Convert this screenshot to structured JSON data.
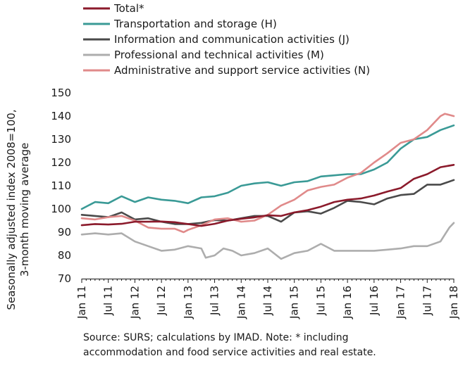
{
  "chart_data": {
    "type": "line",
    "ylabel_lines": [
      "Seasonally adjusted index 2008=100,",
      "3-month moving average"
    ],
    "xlabel": "",
    "ylim": [
      70,
      150
    ],
    "yticks": [
      70,
      80,
      90,
      100,
      110,
      120,
      130,
      140,
      150
    ],
    "x_ticks": [
      "Jan 11",
      "Jul 11",
      "Jan 12",
      "Jul 12",
      "Jan 13",
      "Jul 13",
      "Jan 14",
      "Jul 14",
      "Jan 15",
      "Jul 15",
      "Jan 16",
      "Jul 16",
      "Jan 17",
      "Jul 17",
      "Jan 18"
    ],
    "grid": false,
    "legend_position": "top-left",
    "source_lines": [
      "Source:  SURS; calculations by IMAD. Note: * including",
      "accommodation and food service activities and real estate."
    ],
    "series": [
      {
        "name": "Total*",
        "color": "#8b1a2b",
        "points": [
          [
            0,
            93
          ],
          [
            3,
            93.5
          ],
          [
            6,
            93.3
          ],
          [
            9,
            93.6
          ],
          [
            12,
            94.5
          ],
          [
            15,
            94.5
          ],
          [
            18,
            94.6
          ],
          [
            21,
            94.3
          ],
          [
            24,
            93.5
          ],
          [
            27,
            92.7
          ],
          [
            30,
            93.6
          ],
          [
            33,
            95
          ],
          [
            36,
            95.8
          ],
          [
            39,
            96.4
          ],
          [
            42,
            97.3
          ],
          [
            45,
            97
          ],
          [
            48,
            98.5
          ],
          [
            51,
            99.5
          ],
          [
            54,
            101
          ],
          [
            57,
            103
          ],
          [
            60,
            104
          ],
          [
            63,
            104.5
          ],
          [
            66,
            105.8
          ],
          [
            69,
            107.5
          ],
          [
            72,
            109
          ],
          [
            75,
            113
          ],
          [
            78,
            115
          ],
          [
            81,
            118
          ],
          [
            84,
            119
          ]
        ]
      },
      {
        "name": "Transportation and storage (H)",
        "color": "#3a9a96",
        "points": [
          [
            0,
            100
          ],
          [
            3,
            103
          ],
          [
            6,
            102.5
          ],
          [
            9,
            105.5
          ],
          [
            12,
            103
          ],
          [
            15,
            105
          ],
          [
            18,
            104
          ],
          [
            21,
            103.5
          ],
          [
            24,
            102.5
          ],
          [
            27,
            105
          ],
          [
            30,
            105.5
          ],
          [
            33,
            107
          ],
          [
            36,
            110
          ],
          [
            39,
            111
          ],
          [
            42,
            111.5
          ],
          [
            45,
            110
          ],
          [
            48,
            111.5
          ],
          [
            51,
            112
          ],
          [
            54,
            114
          ],
          [
            57,
            114.5
          ],
          [
            60,
            115
          ],
          [
            63,
            115
          ],
          [
            66,
            117
          ],
          [
            69,
            120
          ],
          [
            72,
            126
          ],
          [
            75,
            130
          ],
          [
            78,
            131
          ],
          [
            81,
            134
          ],
          [
            84,
            136
          ]
        ]
      },
      {
        "name": "Information and communication activities (J)",
        "color": "#4a4a4a",
        "points": [
          [
            0,
            97.5
          ],
          [
            3,
            97
          ],
          [
            6,
            96.5
          ],
          [
            9,
            98.5
          ],
          [
            12,
            95.5
          ],
          [
            15,
            96
          ],
          [
            18,
            94.5
          ],
          [
            21,
            93.5
          ],
          [
            24,
            93.5
          ],
          [
            27,
            94
          ],
          [
            30,
            95.2
          ],
          [
            33,
            95
          ],
          [
            36,
            96
          ],
          [
            39,
            97
          ],
          [
            42,
            97
          ],
          [
            45,
            94.5
          ],
          [
            48,
            98.5
          ],
          [
            51,
            99
          ],
          [
            54,
            98
          ],
          [
            57,
            100.5
          ],
          [
            60,
            103.5
          ],
          [
            63,
            103
          ],
          [
            66,
            102
          ],
          [
            69,
            104.5
          ],
          [
            72,
            106
          ],
          [
            75,
            106.5
          ],
          [
            78,
            110.5
          ],
          [
            81,
            110.5
          ],
          [
            84,
            112.5
          ]
        ]
      },
      {
        "name": "Professional and technical activities (M)",
        "color": "#adadad",
        "points": [
          [
            0,
            89
          ],
          [
            3,
            89.5
          ],
          [
            6,
            89
          ],
          [
            9,
            89.5
          ],
          [
            12,
            86
          ],
          [
            15,
            84
          ],
          [
            18,
            82
          ],
          [
            21,
            82.5
          ],
          [
            24,
            84
          ],
          [
            27,
            83
          ],
          [
            28,
            79
          ],
          [
            30,
            80
          ],
          [
            32,
            83
          ],
          [
            34,
            82
          ],
          [
            36,
            80
          ],
          [
            39,
            81
          ],
          [
            42,
            83
          ],
          [
            45,
            78.5
          ],
          [
            48,
            81
          ],
          [
            51,
            82
          ],
          [
            54,
            85
          ],
          [
            57,
            82
          ],
          [
            60,
            82
          ],
          [
            63,
            82
          ],
          [
            66,
            82
          ],
          [
            69,
            82.5
          ],
          [
            72,
            83
          ],
          [
            75,
            84
          ],
          [
            78,
            84
          ],
          [
            81,
            86
          ],
          [
            83,
            92
          ],
          [
            84,
            94
          ]
        ]
      },
      {
        "name": "Administrative and support service activities (N)",
        "color": "#e08a8a",
        "points": [
          [
            0,
            96
          ],
          [
            3,
            95.5
          ],
          [
            6,
            96.5
          ],
          [
            9,
            97
          ],
          [
            12,
            95
          ],
          [
            15,
            92
          ],
          [
            18,
            91.5
          ],
          [
            21,
            91.5
          ],
          [
            23,
            90
          ],
          [
            24,
            91
          ],
          [
            27,
            93
          ],
          [
            30,
            95.5
          ],
          [
            33,
            96
          ],
          [
            36,
            94.5
          ],
          [
            39,
            95
          ],
          [
            42,
            97.5
          ],
          [
            45,
            101.5
          ],
          [
            48,
            104
          ],
          [
            51,
            108
          ],
          [
            54,
            109.5
          ],
          [
            57,
            110.5
          ],
          [
            60,
            113.5
          ],
          [
            63,
            115.5
          ],
          [
            66,
            120
          ],
          [
            69,
            124
          ],
          [
            72,
            128.5
          ],
          [
            75,
            130
          ],
          [
            78,
            134
          ],
          [
            81,
            140
          ],
          [
            82,
            141
          ],
          [
            84,
            140
          ]
        ]
      }
    ]
  }
}
